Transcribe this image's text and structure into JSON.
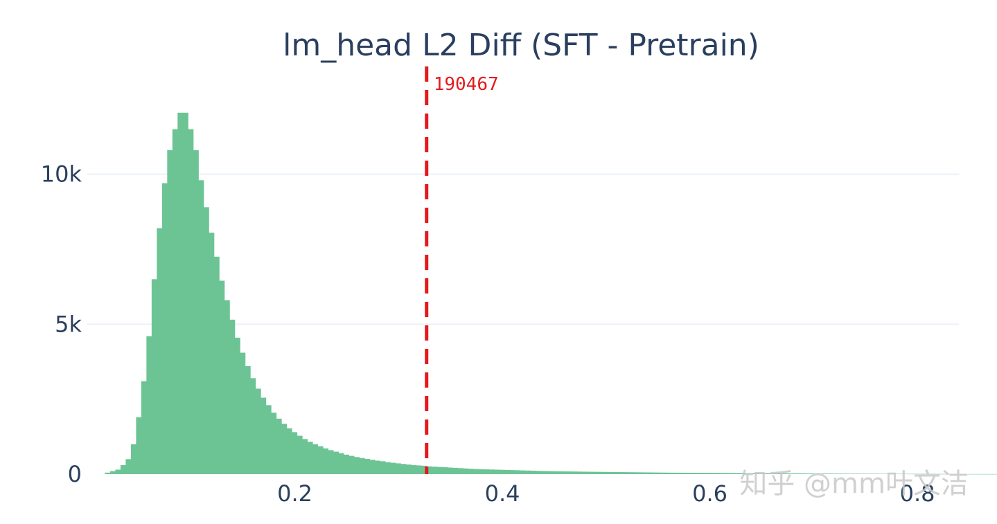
{
  "watermark": "知乎 @mm叶文洁",
  "chart_data": {
    "type": "histogram",
    "title": "lm_head L2 Diff (SFT - Pretrain)",
    "xlabel": "",
    "ylabel": "",
    "xlim": [
      0.0,
      0.84
    ],
    "ylim": [
      0,
      13500
    ],
    "x_ticks": [
      {
        "value": 0.2,
        "label": "0.2"
      },
      {
        "value": 0.4,
        "label": "0.4"
      },
      {
        "value": 0.6,
        "label": "0.6"
      },
      {
        "value": 0.8,
        "label": "0.8"
      }
    ],
    "y_ticks": [
      {
        "value": 0,
        "label": "0"
      },
      {
        "value": 5000,
        "label": "5k"
      },
      {
        "value": 10000,
        "label": "10k"
      }
    ],
    "grid": true,
    "bar_color": "#6cc494",
    "line_color": "#e41a1c",
    "bin_width": 0.005,
    "bin_start": 0.017,
    "counts": [
      50,
      100,
      150,
      300,
      500,
      1000,
      1900,
      3100,
      4600,
      6500,
      8200,
      9700,
      10800,
      11500,
      12050,
      12050,
      11500,
      10800,
      9800,
      8900,
      8050,
      7250,
      6450,
      5800,
      5150,
      4550,
      4050,
      3600,
      3200,
      2850,
      2550,
      2300,
      2050,
      1850,
      1680,
      1530,
      1400,
      1280,
      1170,
      1080,
      1000,
      930,
      860,
      800,
      750,
      700,
      650,
      610,
      570,
      540,
      510,
      480,
      450,
      430,
      400,
      380,
      360,
      340,
      320,
      300,
      290,
      280,
      260,
      250,
      240,
      230,
      220,
      210,
      200,
      190,
      180,
      170,
      165,
      160,
      155,
      150,
      145,
      140,
      135,
      130,
      125,
      120,
      115,
      110,
      105,
      100,
      98,
      95,
      92,
      90,
      88,
      85,
      82,
      80,
      78,
      76,
      74,
      72,
      70,
      68,
      66,
      64,
      62,
      60,
      58,
      56,
      54,
      52,
      50,
      49,
      48,
      47,
      46,
      45,
      44,
      43,
      42,
      41,
      40,
      39,
      38,
      37,
      36,
      35,
      34,
      33,
      32,
      31,
      30,
      29,
      28,
      27,
      26,
      25,
      24,
      23,
      22,
      21,
      20,
      19,
      18,
      17,
      16,
      15,
      15,
      14,
      14,
      13,
      13,
      12,
      12,
      11,
      11,
      10,
      10,
      9,
      9,
      8,
      8,
      7,
      7,
      6,
      6,
      5,
      5,
      5,
      4,
      4,
      4,
      3,
      3,
      3
    ],
    "vline": {
      "x": 0.327,
      "label": "190467",
      "style": "dashed"
    }
  }
}
